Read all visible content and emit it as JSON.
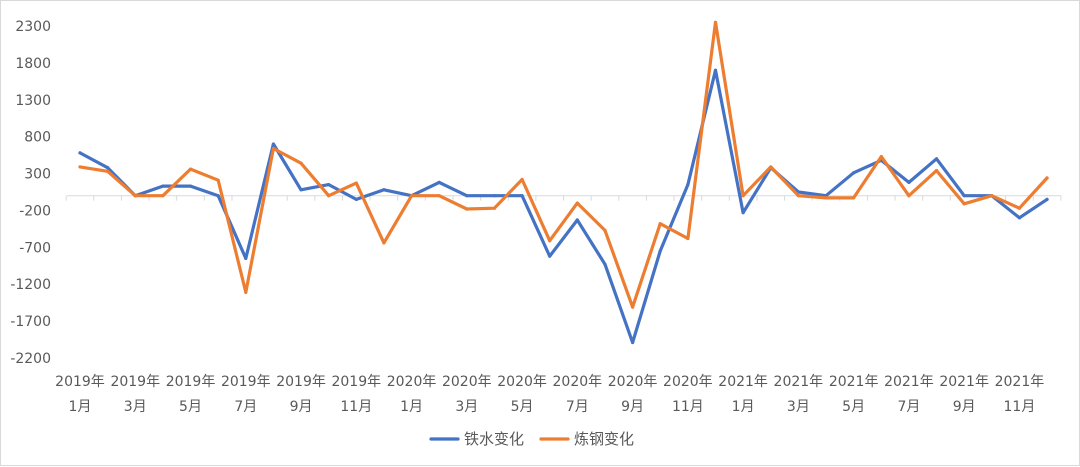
{
  "chart_data": {
    "type": "line",
    "title": "",
    "xlabel": "",
    "ylabel": "",
    "ylim": [
      -2200,
      2300
    ],
    "yticks": [
      2300,
      1800,
      1300,
      800,
      300,
      -200,
      -700,
      -1200,
      -1700,
      -2200
    ],
    "grid": false,
    "legend_position": "bottom",
    "x": [
      "2019-01",
      "2019-02",
      "2019-03",
      "2019-04",
      "2019-05",
      "2019-06",
      "2019-07",
      "2019-08",
      "2019-09",
      "2019-10",
      "2019-11",
      "2019-12",
      "2020-01",
      "2020-02",
      "2020-03",
      "2020-04",
      "2020-05",
      "2020-06",
      "2020-07",
      "2020-08",
      "2020-09",
      "2020-10",
      "2020-11",
      "2020-12",
      "2021-01",
      "2021-02",
      "2021-03",
      "2021-04",
      "2021-05",
      "2021-06",
      "2021-07",
      "2021-08",
      "2021-09",
      "2021-10",
      "2021-11",
      "2021-12"
    ],
    "x_tick_labels": [
      {
        "year": "2019年",
        "month": "1月"
      },
      {
        "year": "2019年",
        "month": "3月"
      },
      {
        "year": "2019年",
        "month": "5月"
      },
      {
        "year": "2019年",
        "month": "7月"
      },
      {
        "year": "2019年",
        "month": "9月"
      },
      {
        "year": "2019年",
        "month": "11月"
      },
      {
        "year": "2020年",
        "month": "1月"
      },
      {
        "year": "2020年",
        "month": "3月"
      },
      {
        "year": "2020年",
        "month": "5月"
      },
      {
        "year": "2020年",
        "month": "7月"
      },
      {
        "year": "2020年",
        "month": "9月"
      },
      {
        "year": "2020年",
        "month": "11月"
      },
      {
        "year": "2021年",
        "month": "1月"
      },
      {
        "year": "2021年",
        "month": "3月"
      },
      {
        "year": "2021年",
        "month": "5月"
      },
      {
        "year": "2021年",
        "month": "7月"
      },
      {
        "year": "2021年",
        "month": "9月"
      },
      {
        "year": "2021年",
        "month": "11月"
      }
    ],
    "series": [
      {
        "name": "铁水变化",
        "color": "#4472c4",
        "values": [
          580,
          380,
          0,
          130,
          130,
          0,
          -850,
          700,
          80,
          150,
          -50,
          80,
          0,
          180,
          0,
          0,
          0,
          -820,
          -330,
          -930,
          -1990,
          -750,
          150,
          1700,
          -230,
          380,
          50,
          0,
          310,
          480,
          180,
          500,
          0,
          0,
          -300,
          -50
        ]
      },
      {
        "name": "炼钢变化",
        "color": "#ed7d31",
        "values": [
          390,
          330,
          0,
          0,
          360,
          210,
          -1310,
          640,
          440,
          0,
          170,
          -640,
          0,
          0,
          -180,
          -170,
          220,
          -610,
          -100,
          -470,
          -1510,
          -380,
          -580,
          2350,
          0,
          390,
          0,
          -30,
          -30,
          530,
          0,
          340,
          -110,
          0,
          -170,
          240
        ]
      }
    ]
  }
}
